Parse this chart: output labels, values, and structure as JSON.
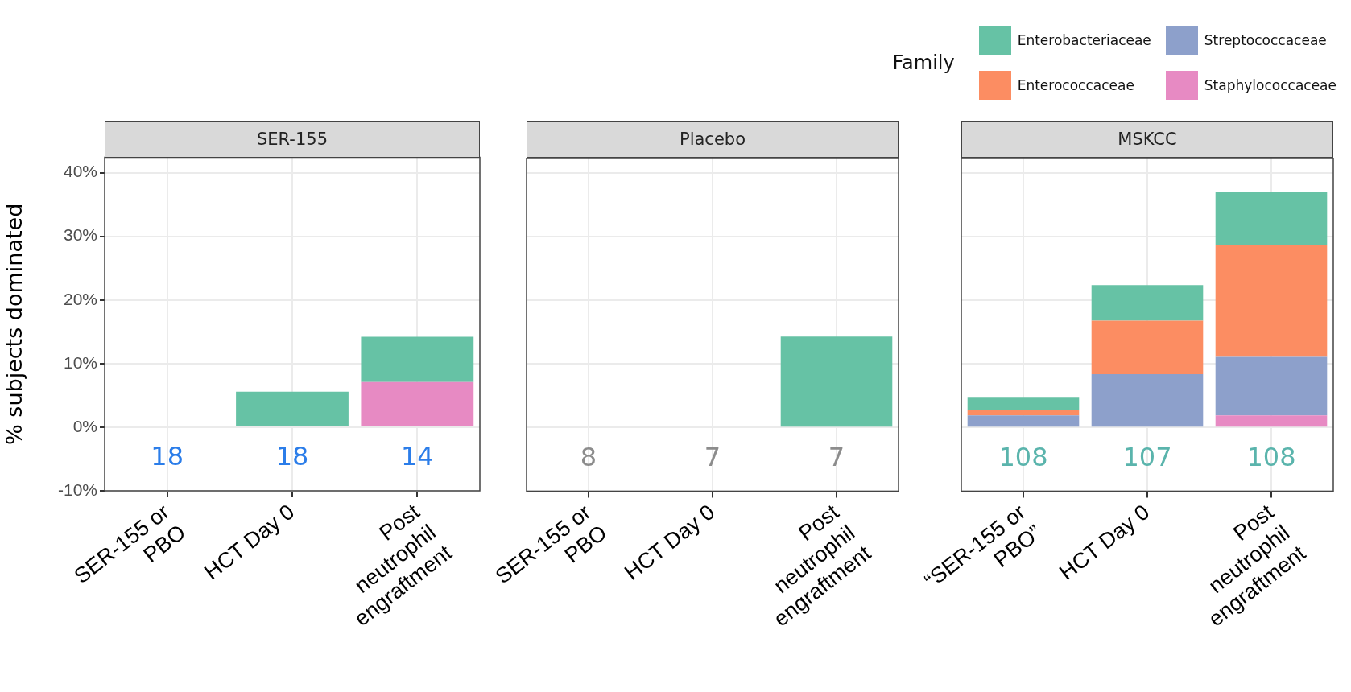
{
  "chart_data": [
    {
      "type": "bar",
      "title": "SER-155",
      "ylabel": "% subjects dominated",
      "stacked": true,
      "grid": true,
      "categories": [
        "SER-155 or PBO",
        "HCT Day 0",
        "Post neutrophil engraftment"
      ],
      "ylim": [
        -10,
        42.4
      ],
      "yticks": [
        {
          "value": -10,
          "label": "-10%"
        },
        {
          "value": 0,
          "label": "0%"
        },
        {
          "value": 10,
          "label": "10%"
        },
        {
          "value": 20,
          "label": "20%"
        },
        {
          "value": 30,
          "label": "30%"
        },
        {
          "value": 40,
          "label": "40%"
        }
      ],
      "series": [
        {
          "color": "#e78ac3",
          "values": [
            null,
            null,
            7.1
          ]
        },
        {
          "color": "#8da0cb",
          "values": [
            null,
            null,
            null
          ]
        },
        {
          "color": "#fc8d62",
          "values": [
            null,
            null,
            null
          ]
        },
        {
          "color": "#66c2a5",
          "values": [
            null,
            5.6,
            7.1
          ]
        }
      ],
      "annotations": [
        "18",
        "18",
        "14"
      ]
    },
    {
      "type": "bar",
      "title": "Placebo",
      "stacked": true,
      "grid": true,
      "tick_labels": "x",
      "categories": [
        "SER-155 or PBO",
        "HCT Day 0",
        "Post neutrophil engraftment"
      ],
      "ylim": [
        -10,
        42.4
      ],
      "yticks": [
        -10,
        0,
        10,
        20,
        30,
        40
      ],
      "series": [
        {
          "color": "#e78ac3",
          "values": [
            null,
            null,
            null
          ]
        },
        {
          "color": "#8da0cb",
          "values": [
            null,
            null,
            null
          ]
        },
        {
          "color": "#fc8d62",
          "values": [
            null,
            null,
            null
          ]
        },
        {
          "color": "#66c2a5",
          "values": [
            null,
            null,
            14.3
          ]
        }
      ],
      "annotations": [
        "8",
        "7",
        "7"
      ]
    },
    {
      "type": "bar",
      "title": "MSKCC",
      "stacked": true,
      "grid": true,
      "tick_labels": "x",
      "legend_title": "Family",
      "legend": "top right",
      "categories": [
        "“SER-155 or PBO”",
        "HCT Day 0",
        "Post neutrophil engraftment"
      ],
      "ylim": [
        -10,
        42.4
      ],
      "yticks": [
        -10,
        0,
        10,
        20,
        30,
        40
      ],
      "series": [
        {
          "name": "Staphylococcaceae",
          "color": "#e78ac3",
          "values": [
            null,
            null,
            1.9
          ]
        },
        {
          "name": "Streptococcaceae",
          "color": "#8da0cb",
          "values": [
            1.9,
            8.4,
            9.2
          ]
        },
        {
          "name": "Enterococcaceae",
          "color": "#fc8d62",
          "values": [
            0.9,
            8.4,
            17.6
          ]
        },
        {
          "name": "Enterobacteriaceae",
          "color": "#66c2a5",
          "values": [
            1.9,
            5.6,
            8.3
          ]
        }
      ],
      "annotations": [
        "108",
        "107",
        "108"
      ]
    }
  ]
}
